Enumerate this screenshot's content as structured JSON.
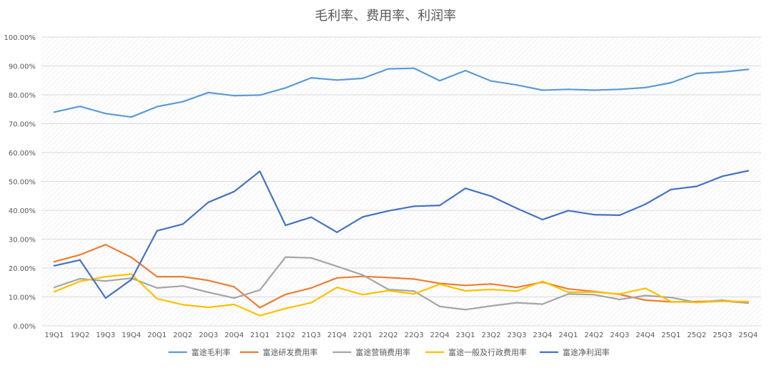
{
  "chart_data": {
    "type": "line",
    "title": "毛利率、费用率、利润率",
    "xlabel": "",
    "ylabel": "",
    "ylim": [
      0,
      100
    ],
    "y_ticks": [
      "0.00%",
      "10.00%",
      "20.00%",
      "30.00%",
      "40.00%",
      "50.00%",
      "60.00%",
      "70.00%",
      "80.00%",
      "90.00%",
      "100.00%"
    ],
    "grid": true,
    "legend_position": "bottom",
    "categories": [
      "19Q1",
      "19Q2",
      "19Q3",
      "19Q4",
      "20Q1",
      "20Q2",
      "20Q3",
      "20Q4",
      "21Q1",
      "21Q2",
      "21Q3",
      "21Q4",
      "22Q1",
      "22Q2",
      "22Q3",
      "22Q4",
      "23Q1",
      "23Q2",
      "23Q3",
      "23Q4",
      "24Q1",
      "24Q2",
      "24Q3",
      "24Q4",
      "25Q1",
      "25Q2",
      "25Q3",
      "25Q4"
    ],
    "series": [
      {
        "name": "富途毛利率",
        "color": "#5b9bd5",
        "values": [
          74.0,
          76.0,
          73.5,
          72.3,
          75.9,
          77.6,
          80.8,
          79.7,
          79.9,
          82.4,
          85.9,
          85.1,
          85.7,
          89.0,
          89.2,
          84.9,
          88.4,
          84.8,
          83.4,
          81.6,
          81.9,
          81.6,
          81.9,
          82.5,
          84.2,
          87.4,
          87.9,
          88.8
        ]
      },
      {
        "name": "富途研发费用率",
        "color": "#ed7d31",
        "values": [
          22.2,
          24.6,
          28.1,
          23.7,
          17.0,
          17.0,
          15.7,
          13.5,
          6.3,
          10.9,
          13.1,
          16.6,
          17.1,
          16.7,
          16.2,
          14.7,
          14.0,
          14.5,
          13.3,
          15.1,
          12.8,
          11.9,
          10.9,
          8.9,
          8.3,
          8.4,
          8.6,
          7.9
        ]
      },
      {
        "name": "富途营销费用率",
        "color": "#a5a5a5",
        "values": [
          13.3,
          16.3,
          15.5,
          16.5,
          13.1,
          13.8,
          11.6,
          9.6,
          12.4,
          23.8,
          23.5,
          20.6,
          17.6,
          12.6,
          12.0,
          6.7,
          5.6,
          6.9,
          8.0,
          7.5,
          11.0,
          10.8,
          9.1,
          10.5,
          9.8,
          8.1,
          8.9,
          7.9
        ]
      },
      {
        "name": "富途一般及行政费用率",
        "color": "#ffc000",
        "values": [
          11.8,
          15.4,
          17.0,
          17.9,
          9.4,
          7.3,
          6.4,
          7.4,
          3.5,
          6.0,
          8.0,
          13.3,
          10.8,
          12.2,
          11.0,
          14.4,
          12.1,
          12.6,
          12.0,
          15.4,
          11.6,
          11.7,
          11.0,
          13.0,
          8.4,
          8.1,
          8.5,
          8.4
        ]
      },
      {
        "name": "富途净利润率",
        "color": "#4472c4",
        "values": [
          20.8,
          22.8,
          9.6,
          16.0,
          32.9,
          35.2,
          42.8,
          46.5,
          53.5,
          34.8,
          37.6,
          32.4,
          37.7,
          39.8,
          41.4,
          41.7,
          47.6,
          44.9,
          40.7,
          36.8,
          39.9,
          38.5,
          38.3,
          42.1,
          47.2,
          48.3,
          51.8,
          53.7
        ]
      }
    ]
  }
}
